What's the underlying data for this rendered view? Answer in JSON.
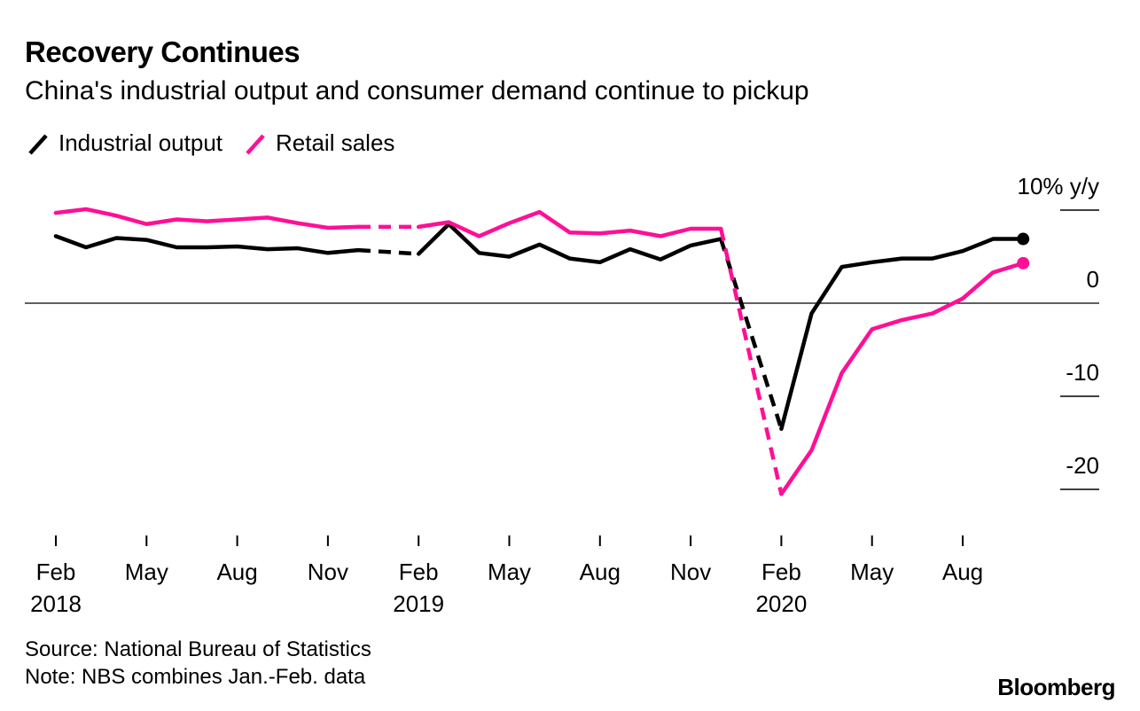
{
  "title": "Recovery Continues",
  "subtitle": "China's industrial output and consumer demand continue to pickup",
  "legend": {
    "industrial_output": "Industrial output",
    "retail_sales": "Retail sales"
  },
  "notes": {
    "source": "Source: National Bureau of Statistics",
    "note": "Note: NBS combines Jan.-Feb. data"
  },
  "brand": "Bloomberg",
  "colors": {
    "industrial_output": "#000000",
    "retail_sales": "#ff0f96",
    "axis": "#000000"
  },
  "chart_data": {
    "type": "line",
    "title": "Recovery Continues",
    "ylabel": "% y/y",
    "ylim": [
      -24,
      12
    ],
    "yticks": [
      {
        "value": 10,
        "label": "10% y/y"
      },
      {
        "value": 0,
        "label": "0"
      },
      {
        "value": -10,
        "label": "-10"
      },
      {
        "value": -20,
        "label": "-20"
      }
    ],
    "x": [
      "2018-02",
      "2018-03",
      "2018-04",
      "2018-05",
      "2018-06",
      "2018-07",
      "2018-08",
      "2018-09",
      "2018-10",
      "2018-11",
      "2018-12",
      "2019-02",
      "2019-03",
      "2019-04",
      "2019-05",
      "2019-06",
      "2019-07",
      "2019-08",
      "2019-09",
      "2019-10",
      "2019-11",
      "2019-12",
      "2020-02",
      "2020-03",
      "2020-04",
      "2020-05",
      "2020-06",
      "2020-07",
      "2020-08",
      "2020-09",
      "2020-10"
    ],
    "xticks": [
      {
        "x": "2018-02",
        "label": "Feb",
        "year": "2018"
      },
      {
        "x": "2018-05",
        "label": "May",
        "year": ""
      },
      {
        "x": "2018-08",
        "label": "Aug",
        "year": ""
      },
      {
        "x": "2018-11",
        "label": "Nov",
        "year": ""
      },
      {
        "x": "2019-02",
        "label": "Feb",
        "year": "2019"
      },
      {
        "x": "2019-05",
        "label": "May",
        "year": ""
      },
      {
        "x": "2019-08",
        "label": "Aug",
        "year": ""
      },
      {
        "x": "2019-11",
        "label": "Nov",
        "year": ""
      },
      {
        "x": "2020-02",
        "label": "Feb",
        "year": "2020"
      },
      {
        "x": "2020-05",
        "label": "May",
        "year": ""
      },
      {
        "x": "2020-08",
        "label": "Aug",
        "year": ""
      }
    ],
    "series": [
      {
        "name": "Industrial output",
        "color": "#000000",
        "values": [
          7.2,
          6.0,
          7.0,
          6.8,
          6.0,
          6.0,
          6.1,
          5.8,
          5.9,
          5.4,
          5.7,
          5.3,
          8.5,
          5.4,
          5.0,
          6.3,
          4.8,
          4.4,
          5.8,
          4.7,
          6.2,
          6.9,
          -13.5,
          -1.1,
          3.9,
          4.4,
          4.8,
          4.8,
          5.6,
          6.9,
          6.9
        ]
      },
      {
        "name": "Retail sales",
        "color": "#ff0f96",
        "values": [
          9.7,
          10.1,
          9.4,
          8.5,
          9.0,
          8.8,
          9.0,
          9.2,
          8.6,
          8.1,
          8.2,
          8.2,
          8.7,
          7.2,
          8.6,
          9.8,
          7.6,
          7.5,
          7.8,
          7.2,
          8.0,
          8.0,
          -20.5,
          -15.8,
          -7.5,
          -2.8,
          -1.8,
          -1.1,
          0.5,
          3.3,
          4.3
        ]
      }
    ]
  }
}
